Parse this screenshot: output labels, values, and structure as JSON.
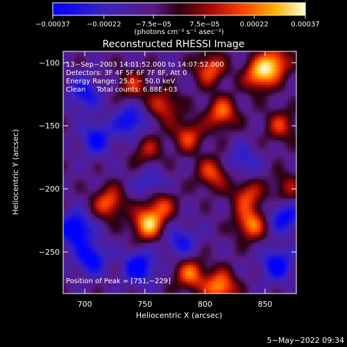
{
  "chart_data": {
    "type": "heatmap",
    "title": "Reconstructed RHESSI Image",
    "xlabel": "Heliocentric X (arcsec)",
    "ylabel": "Heliocentric Y (arcsec)",
    "xlim": [
      682,
      876
    ],
    "ylim": [
      -283,
      -91
    ],
    "x_ticks": [
      {
        "value": 700,
        "label": "700"
      },
      {
        "value": 750,
        "label": "750"
      },
      {
        "value": 800,
        "label": "800"
      },
      {
        "value": 850,
        "label": "850"
      }
    ],
    "y_ticks": [
      {
        "value": -100,
        "label": "−100"
      },
      {
        "value": -150,
        "label": "−150"
      },
      {
        "value": -200,
        "label": "−200"
      },
      {
        "value": -250,
        "label": "−250"
      }
    ],
    "colorbar": {
      "range": [
        -0.00037,
        0.00037
      ],
      "unit_label": "(photons cm⁻² s⁻¹ asec⁻²)",
      "ticks": [
        {
          "value": -0.00037,
          "label": "−0.00037"
        },
        {
          "value": -0.00022,
          "label": "−0.00022"
        },
        {
          "value": -7.5e-05,
          "label": "−7.5e−05"
        },
        {
          "value": 7.5e-05,
          "label": "7.5e−05"
        },
        {
          "value": 0.00022,
          "label": "0.00022"
        },
        {
          "value": 0.00037,
          "label": "0.00037"
        }
      ]
    },
    "info_lines": [
      "13−Sep−2003 14:01:52.000 to 14:07:52.000",
      "Detectors: 3F 4F 5F 6F 7F 8F, Att 0",
      "Energy Range: 25.0 − 50.0 keV",
      "Clean     Total counts: 6.88E+03"
    ],
    "peak_label": "Position of Peak = [751,−229]",
    "peak": {
      "x": 751,
      "y": -229
    },
    "sources": [
      {
        "x": 752,
        "y": -228,
        "value": 0.00037
      },
      {
        "x": 788,
        "y": -268,
        "value": 0.0003
      },
      {
        "x": 813,
        "y": -278,
        "value": 0.00036
      },
      {
        "x": 720,
        "y": -211,
        "value": 0.00029
      },
      {
        "x": 763,
        "y": -213,
        "value": 0.00024
      },
      {
        "x": 838,
        "y": -228,
        "value": 0.00032
      },
      {
        "x": 835,
        "y": -205,
        "value": 0.00025
      },
      {
        "x": 806,
        "y": -188,
        "value": 0.00026
      },
      {
        "x": 786,
        "y": -158,
        "value": 0.00025
      },
      {
        "x": 814,
        "y": -140,
        "value": 0.0003
      },
      {
        "x": 845,
        "y": -110,
        "value": 0.00034
      },
      {
        "x": 858,
        "y": -100,
        "value": 0.00033
      },
      {
        "x": 804,
        "y": -105,
        "value": 0.00028
      },
      {
        "x": 766,
        "y": -134,
        "value": 0.00024
      },
      {
        "x": 740,
        "y": -118,
        "value": 0.0002
      },
      {
        "x": 863,
        "y": -150,
        "value": 0.00022
      },
      {
        "x": 752,
        "y": -170,
        "value": 0.00018
      },
      {
        "x": 868,
        "y": -200,
        "value": 0.00018
      }
    ],
    "minima": [
      {
        "x": 692,
        "y": -232,
        "value": -0.00037
      },
      {
        "x": 705,
        "y": -255,
        "value": -0.0003
      },
      {
        "x": 710,
        "y": -160,
        "value": -0.00026
      },
      {
        "x": 738,
        "y": -146,
        "value": -0.00028
      },
      {
        "x": 700,
        "y": -125,
        "value": -0.00024
      },
      {
        "x": 745,
        "y": -262,
        "value": -0.00032
      },
      {
        "x": 780,
        "y": -242,
        "value": -0.00022
      },
      {
        "x": 860,
        "y": -260,
        "value": -0.0003
      },
      {
        "x": 866,
        "y": -222,
        "value": -0.00028
      },
      {
        "x": 755,
        "y": -196,
        "value": -0.00018
      },
      {
        "x": 832,
        "y": -178,
        "value": -0.00018
      }
    ]
  },
  "footer": {
    "timestamp": "5−May−2022 09:34"
  }
}
